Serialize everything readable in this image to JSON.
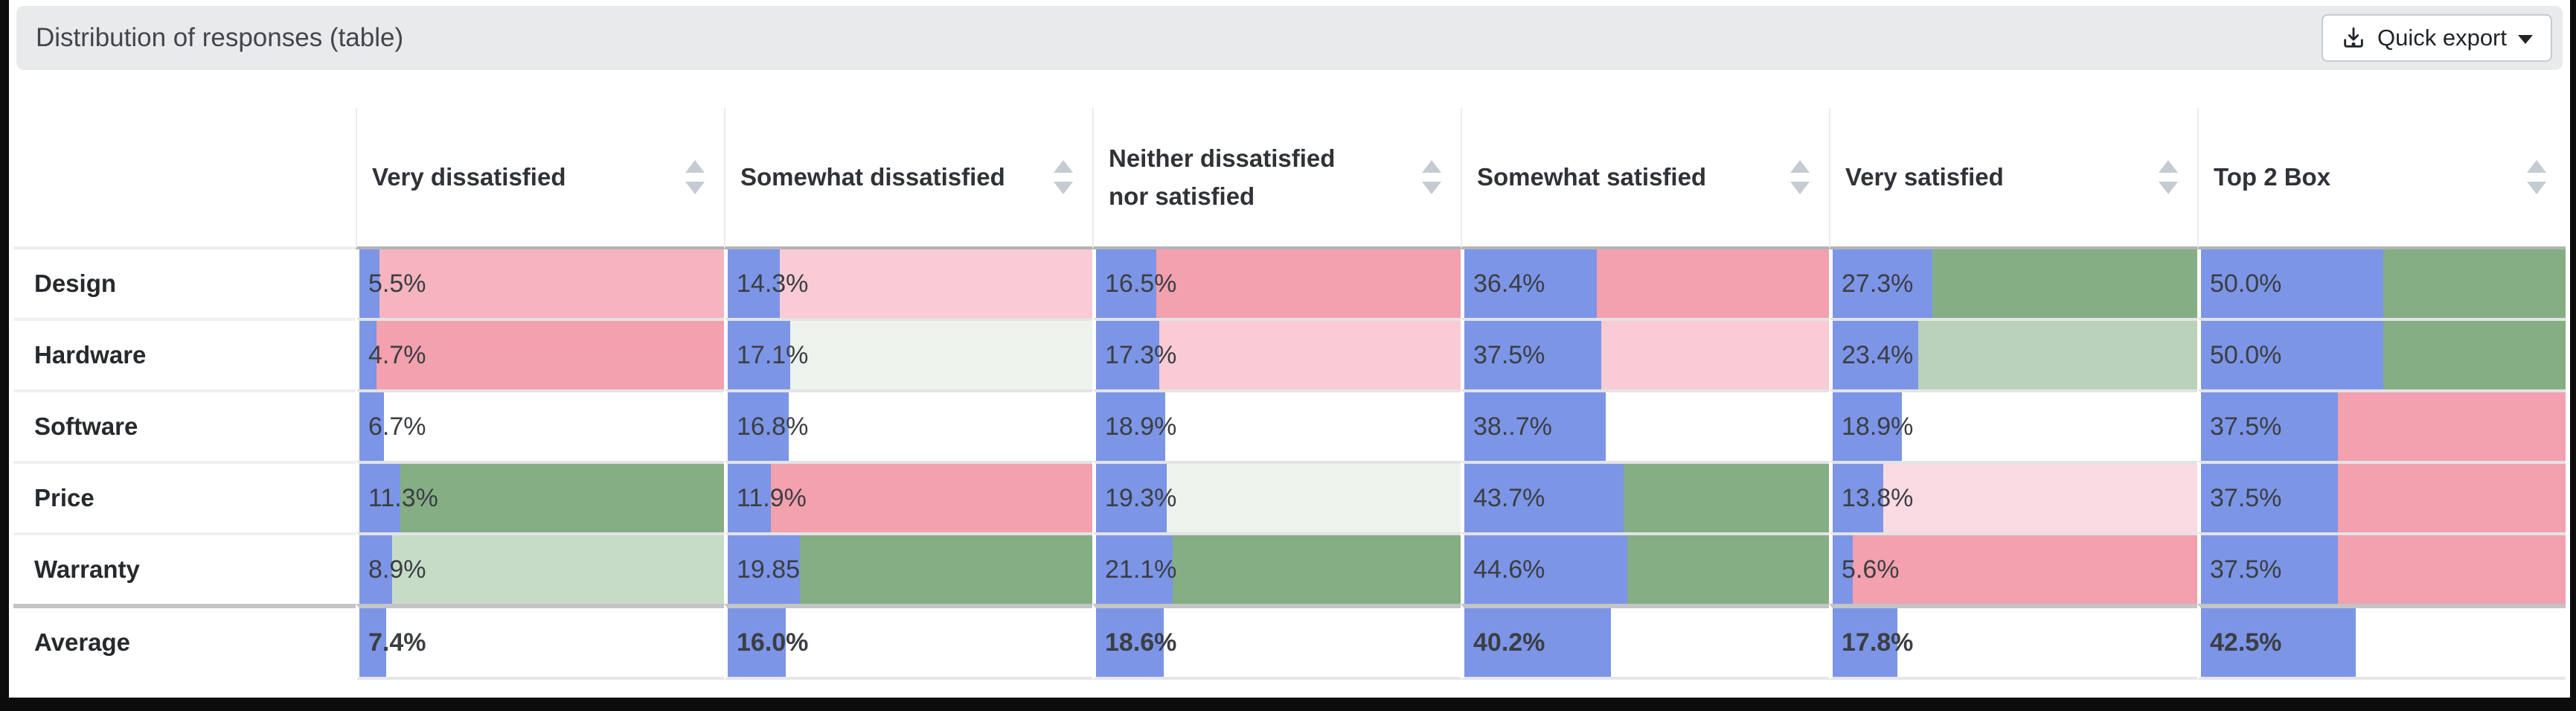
{
  "header": {
    "title": "Distribution of responses (table)",
    "export_label": "Quick export"
  },
  "table": {
    "columns": [
      {
        "label": "Very dissatisfied"
      },
      {
        "label": "Somewhat dissatisfied"
      },
      {
        "label": "Neither dissatisfied nor satisfied"
      },
      {
        "label": "Somewhat satisfied"
      },
      {
        "label": "Very satisfied"
      },
      {
        "label": "Top 2 Box"
      }
    ],
    "rows": [
      {
        "label": "Design",
        "bold": false,
        "cells": [
          {
            "text": "5.5%",
            "bar_pct": 5.5,
            "bg": "medium_pink"
          },
          {
            "text": "14.3%",
            "bar_pct": 14.3,
            "bg": "light_pink"
          },
          {
            "text": "16.5%",
            "bar_pct": 16.5,
            "bg": "dark_pink"
          },
          {
            "text": "36.4%",
            "bar_pct": 36.4,
            "bg": "dark_pink"
          },
          {
            "text": "27.3%",
            "bar_pct": 27.3,
            "bg": "medium_green"
          },
          {
            "text": "50.0%",
            "bar_pct": 50.0,
            "bg": "medium_green"
          }
        ]
      },
      {
        "label": "Hardware",
        "bold": false,
        "cells": [
          {
            "text": "4.7%",
            "bar_pct": 4.7,
            "bg": "dark_pink"
          },
          {
            "text": "17.1%",
            "bar_pct": 17.1,
            "bg": "pale_green"
          },
          {
            "text": "17.3%",
            "bar_pct": 17.3,
            "bg": "light_pink"
          },
          {
            "text": "37.5%",
            "bar_pct": 37.5,
            "bg": "light_pink"
          },
          {
            "text": "23.4%",
            "bar_pct": 23.4,
            "bg": "soft_green"
          },
          {
            "text": "50.0%",
            "bar_pct": 50.0,
            "bg": "medium_green"
          }
        ]
      },
      {
        "label": "Software",
        "bold": false,
        "cells": [
          {
            "text": "6.7%",
            "bar_pct": 6.7,
            "bg": "white"
          },
          {
            "text": "16.8%",
            "bar_pct": 16.8,
            "bg": "white"
          },
          {
            "text": "18.9%",
            "bar_pct": 18.9,
            "bg": "white"
          },
          {
            "text": "38..7%",
            "bar_pct": 38.7,
            "bg": "white"
          },
          {
            "text": "18.9%",
            "bar_pct": 18.9,
            "bg": "white"
          },
          {
            "text": "37.5%",
            "bar_pct": 37.5,
            "bg": "dark_pink"
          }
        ]
      },
      {
        "label": "Price",
        "bold": false,
        "cells": [
          {
            "text": "11.3%",
            "bar_pct": 11.3,
            "bg": "medium_green"
          },
          {
            "text": "11.9%",
            "bar_pct": 11.9,
            "bg": "dark_pink"
          },
          {
            "text": "19.3%",
            "bar_pct": 19.3,
            "bg": "pale_green"
          },
          {
            "text": "43.7%",
            "bar_pct": 43.7,
            "bg": "medium_green"
          },
          {
            "text": "13.8%",
            "bar_pct": 13.8,
            "bg": "pale_pink"
          },
          {
            "text": "37.5%",
            "bar_pct": 37.5,
            "bg": "dark_pink"
          }
        ]
      },
      {
        "label": "Warranty",
        "bold": false,
        "cells": [
          {
            "text": "8.9%",
            "bar_pct": 8.9,
            "bg": "light_green"
          },
          {
            "text": "19.85",
            "bar_pct": 19.85,
            "bg": "medium_green"
          },
          {
            "text": "21.1%",
            "bar_pct": 21.1,
            "bg": "medium_green"
          },
          {
            "text": "44.6%",
            "bar_pct": 44.6,
            "bg": "medium_green"
          },
          {
            "text": "5.6%",
            "bar_pct": 5.6,
            "bg": "dark_pink"
          },
          {
            "text": "37.5%",
            "bar_pct": 37.5,
            "bg": "dark_pink"
          }
        ]
      },
      {
        "label": "Average",
        "bold": true,
        "cells": [
          {
            "text": "7.4%",
            "bar_pct": 7.4,
            "bg": "white"
          },
          {
            "text": "16.0%",
            "bar_pct": 16.0,
            "bg": "white"
          },
          {
            "text": "18.6%",
            "bar_pct": 18.6,
            "bg": "white"
          },
          {
            "text": "40.2%",
            "bar_pct": 40.2,
            "bg": "white"
          },
          {
            "text": "17.8%",
            "bar_pct": 17.8,
            "bg": "white"
          },
          {
            "text": "42.5%",
            "bar_pct": 42.5,
            "bg": "white"
          }
        ]
      }
    ]
  },
  "colors": {
    "bar_blue": "#7C95E6",
    "dark_pink": "#F3A0AF",
    "medium_pink": "#F5B4C0",
    "light_pink": "#F8CBD5",
    "pale_pink": "#FBDBE3",
    "medium_green": "#85AE85",
    "soft_green": "#B9D2B9",
    "light_green": "#C7DCC7",
    "pale_green": "#ECF3EC",
    "white": "#FFFFFF",
    "title_bar_bg": "#E9EAEC"
  }
}
